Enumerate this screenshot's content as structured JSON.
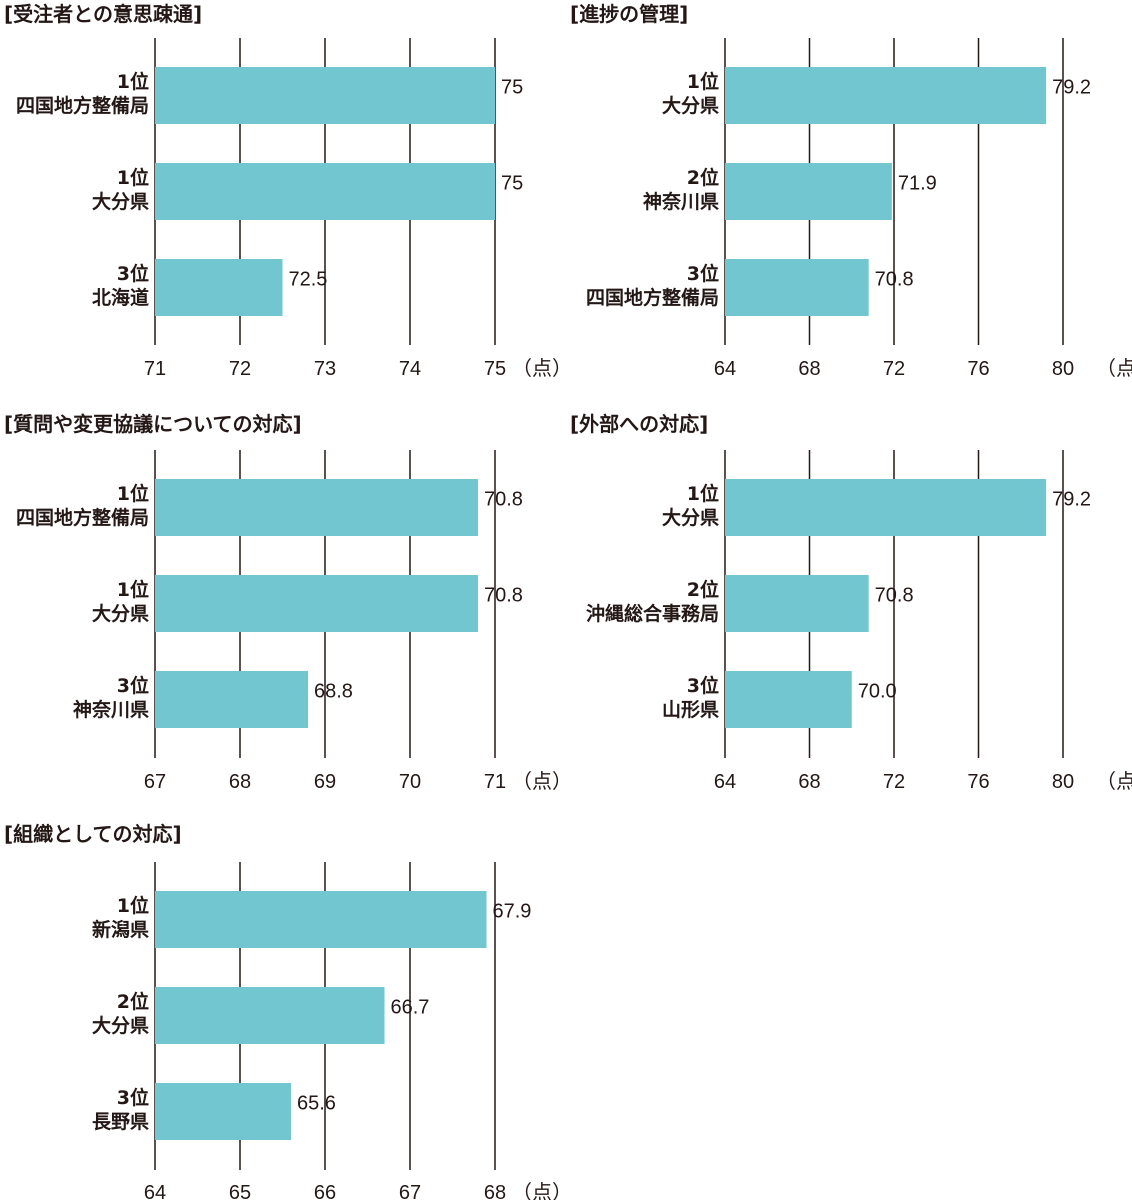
{
  "chart_data": [
    {
      "type": "bar",
      "orientation": "horizontal",
      "title": "[受注者との意思疎通]",
      "ranks": [
        "1位",
        "1位",
        "3位"
      ],
      "categories": [
        "四国地方整備局",
        "大分県",
        "北海道"
      ],
      "values": [
        75,
        75,
        72.5
      ],
      "value_labels": [
        "75",
        "75",
        "72.5"
      ],
      "xlim": [
        71,
        75
      ],
      "ticks": [
        "71",
        "72",
        "73",
        "74",
        "75"
      ],
      "unit": "（点）"
    },
    {
      "type": "bar",
      "orientation": "horizontal",
      "title": "[進捗の管理]",
      "ranks": [
        "1位",
        "2位",
        "3位"
      ],
      "categories": [
        "大分県",
        "神奈川県",
        "四国地方整備局"
      ],
      "values": [
        79.2,
        71.9,
        70.8
      ],
      "value_labels": [
        "79.2",
        "71.9",
        "70.8"
      ],
      "xlim": [
        64,
        80
      ],
      "ticks": [
        "64",
        "68",
        "72",
        "76",
        "80"
      ],
      "unit": "（点）"
    },
    {
      "type": "bar",
      "orientation": "horizontal",
      "title": "[質問や変更協議についての対応]",
      "ranks": [
        "1位",
        "1位",
        "3位"
      ],
      "categories": [
        "四国地方整備局",
        "大分県",
        "神奈川県"
      ],
      "values": [
        70.8,
        70.8,
        68.8
      ],
      "value_labels": [
        "70.8",
        "70.8",
        "68.8"
      ],
      "xlim": [
        67,
        71
      ],
      "ticks": [
        "67",
        "68",
        "69",
        "70",
        "71"
      ],
      "unit": "（点）"
    },
    {
      "type": "bar",
      "orientation": "horizontal",
      "title": "[外部への対応]",
      "ranks": [
        "1位",
        "2位",
        "3位"
      ],
      "categories": [
        "大分県",
        "沖縄総合事務局",
        "山形県"
      ],
      "values": [
        79.2,
        70.8,
        70.0
      ],
      "value_labels": [
        "79.2",
        "70.8",
        "70.0"
      ],
      "xlim": [
        64,
        80
      ],
      "ticks": [
        "64",
        "68",
        "72",
        "76",
        "80"
      ],
      "unit": "（点）"
    },
    {
      "type": "bar",
      "orientation": "horizontal",
      "title": "[組織としての対応]",
      "ranks": [
        "1位",
        "2位",
        "3位"
      ],
      "categories": [
        "新潟県",
        "大分県",
        "長野県"
      ],
      "values": [
        67.9,
        66.7,
        65.6
      ],
      "value_labels": [
        "67.9",
        "66.7",
        "65.6"
      ],
      "xlim": [
        64,
        68
      ],
      "ticks": [
        "64",
        "65",
        "66",
        "67",
        "68"
      ],
      "unit": "（点）"
    }
  ]
}
